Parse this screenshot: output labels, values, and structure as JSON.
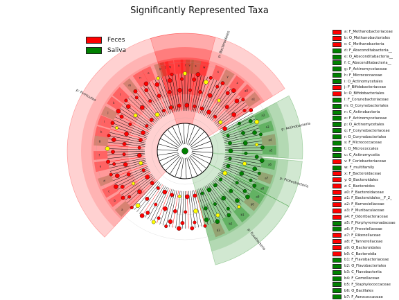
{
  "chart_data": {
    "type": "cladogram",
    "title": "Significantly Represented Taxa",
    "colors": {
      "Feces": "#ff0000",
      "Saliva": "#008000",
      "neutral": "#ffff00"
    },
    "legend": [
      {
        "name": "Feces",
        "color": "#ff0000"
      },
      {
        "name": "Saliva",
        "color": "#008000"
      }
    ],
    "sector_labels": [
      {
        "text": "p: Bacteroidetes",
        "group": "Feces"
      },
      {
        "text": "p: Firmicutes",
        "group": "Feces"
      },
      {
        "text": "p: Actinobacteria",
        "group": "Saliva"
      },
      {
        "text": "p: Proteobacteria",
        "group": "Saliva"
      },
      {
        "text": "p: Fusobacteria",
        "group": "Saliva"
      }
    ],
    "key": [
      {
        "label": "a: F_Methanobacteriaceae",
        "group": "Feces"
      },
      {
        "label": "b: O_Methanobacteriales",
        "group": "Feces"
      },
      {
        "label": "c: C_Methanobacteria",
        "group": "Feces"
      },
      {
        "label": "d: F_Absconditabacteria__",
        "group": "Saliva"
      },
      {
        "label": "e: O_Absconditabacteria__",
        "group": "Saliva"
      },
      {
        "label": "f: C_Absconditabacteria__",
        "group": "Saliva"
      },
      {
        "label": "g: F_Actinomycetaceae",
        "group": "Saliva"
      },
      {
        "label": "h: F_Micrococcaceae",
        "group": "Saliva"
      },
      {
        "label": "i: O_Actinomycetales",
        "group": "Saliva"
      },
      {
        "label": "j: F_Bifidobacteriaceae",
        "group": "Feces"
      },
      {
        "label": "k: O_Bifidobacteriales",
        "group": "Feces"
      },
      {
        "label": "l: F_Corynebacteriaceae",
        "group": "Saliva"
      },
      {
        "label": "m: O_Corynebacteriales",
        "group": "Saliva"
      },
      {
        "label": "n: C_Actinobacteria",
        "group": "Saliva"
      },
      {
        "label": "o: F_Actinomycetaceae",
        "group": "Saliva"
      },
      {
        "label": "p: O_Actinomycetales",
        "group": "Saliva"
      },
      {
        "label": "q: F_Corynebacteriaceae",
        "group": "Saliva"
      },
      {
        "label": "r: O_Corynebacteriales",
        "group": "Saliva"
      },
      {
        "label": "s: F_Micrococcaceae",
        "group": "Saliva"
      },
      {
        "label": "t: O_Micrococcales",
        "group": "Saliva"
      },
      {
        "label": "u: C_Actinomycetia",
        "group": "Saliva"
      },
      {
        "label": "v: F_Coriobacteriaceae",
        "group": "Feces"
      },
      {
        "label": "w: F_multifamily",
        "group": "Saliva"
      },
      {
        "label": "x: F_Bacteroidaceae",
        "group": "Feces"
      },
      {
        "label": "y: O_Bacteroidales",
        "group": "Feces"
      },
      {
        "label": "z: C_Bacteroides",
        "group": "Feces"
      },
      {
        "label": "a0: F_Bacteroidaceae",
        "group": "Feces"
      },
      {
        "label": "a1: F_Bacteroidales__F_2_",
        "group": "Feces"
      },
      {
        "label": "a2: F_Barnesiellaceae",
        "group": "Feces"
      },
      {
        "label": "a3: F_Muribaculaceae",
        "group": "Feces"
      },
      {
        "label": "a4: F_Odoribacteraceae",
        "group": "Feces"
      },
      {
        "label": "a5: F_Porphyromonadaceae",
        "group": "Saliva"
      },
      {
        "label": "a6: F_Prevotellaceae",
        "group": "Saliva"
      },
      {
        "label": "a7: F_Rikenellaceae",
        "group": "Feces"
      },
      {
        "label": "a8: F_Tannerellaceae",
        "group": "Feces"
      },
      {
        "label": "a9: O_Bacteroidales",
        "group": "Feces"
      },
      {
        "label": "b0: C_Bacteroidia",
        "group": "Feces"
      },
      {
        "label": "b1: F_Flavobacteriaceae",
        "group": "Saliva"
      },
      {
        "label": "b2: O_Flavobacteriales",
        "group": "Saliva"
      },
      {
        "label": "b3: C_Flavobacteriia",
        "group": "Saliva"
      },
      {
        "label": "b4: F_Gemellaceae",
        "group": "Saliva"
      },
      {
        "label": "b5: F_Staphylococcaceae",
        "group": "Saliva"
      },
      {
        "label": "b6: O_Bacillales",
        "group": "Saliva"
      },
      {
        "label": "b7: F_Aerococcaceae",
        "group": "Saliva"
      }
    ]
  }
}
